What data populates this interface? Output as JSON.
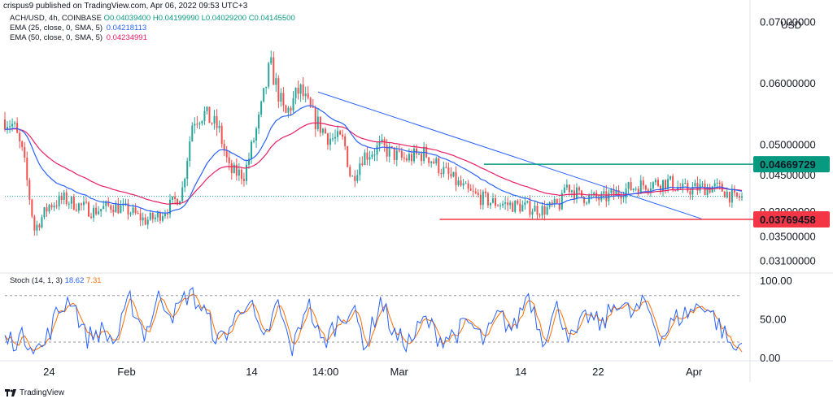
{
  "publisher": "crispus9 published on TradingView.com, Apr 06, 2022 09:53 UTC+3",
  "symbol_line": {
    "symbol": "ACH/USD, 4h, COINBASE",
    "o": "O0.04039400",
    "h": "H0.04199990",
    "l": "L0.04029200",
    "c": "C0.04145500"
  },
  "ema25": {
    "label": "EMA (25, close, 0, SMA, 5)",
    "value": "0.04218113",
    "color": "#2962ff"
  },
  "ema50": {
    "label": "EMA (50, close, 0, SMA, 5)",
    "value": "0.04234991",
    "color": "#e91e63"
  },
  "currency": "USD",
  "price_axis": {
    "ticks": [
      "0.07000000",
      "0.06000000",
      "0.05000000",
      "0.04500000",
      "0.03900000",
      "0.03500000",
      "0.03100000"
    ],
    "tick_values": [
      0.07,
      0.06,
      0.05,
      0.045,
      0.039,
      0.035,
      0.031
    ],
    "resistance_label": "0.04669729",
    "support_label": "0.03769458",
    "resistance_value": 0.04669729,
    "support_value": 0.03769458,
    "current_value": 0.041455
  },
  "stoch": {
    "label": "Stoch (14, 1, 3)",
    "k_value": "18.62",
    "d_value": "7.31",
    "ticks": [
      "100.00",
      "50.00",
      "0.00"
    ],
    "tick_values": [
      100,
      50,
      0
    ],
    "upper_band": 80,
    "lower_band": 20,
    "k_color": "#2962ff",
    "d_color": "#ff6d00"
  },
  "time_axis": [
    "24",
    "Feb",
    "14",
    "14:00",
    "Mar",
    "14",
    "22",
    "Apr"
  ],
  "footer": "TradingView",
  "colors": {
    "up": "#26a69a",
    "down": "#ef5350",
    "resistance": "#089981",
    "support": "#f23645",
    "trend": "#2962ff"
  },
  "chart_data": {
    "type": "candlestick",
    "title": "ACH/USD, 4h, COINBASE",
    "ylim": [
      0.0292,
      0.0722
    ],
    "price_path": [
      [
        0,
        0.054
      ],
      [
        0.012,
        0.053
      ],
      [
        0.025,
        0.048
      ],
      [
        0.04,
        0.036
      ],
      [
        0.05,
        0.038
      ],
      [
        0.06,
        0.04
      ],
      [
        0.08,
        0.041
      ],
      [
        0.1,
        0.04
      ],
      [
        0.12,
        0.039
      ],
      [
        0.145,
        0.04
      ],
      [
        0.17,
        0.039
      ],
      [
        0.19,
        0.0375
      ],
      [
        0.205,
        0.038
      ],
      [
        0.225,
        0.04
      ],
      [
        0.24,
        0.042
      ],
      [
        0.255,
        0.054
      ],
      [
        0.27,
        0.055
      ],
      [
        0.29,
        0.0525
      ],
      [
        0.305,
        0.0455
      ],
      [
        0.325,
        0.045
      ],
      [
        0.345,
        0.054
      ],
      [
        0.36,
        0.063
      ],
      [
        0.38,
        0.0545
      ],
      [
        0.4,
        0.059
      ],
      [
        0.42,
        0.054
      ],
      [
        0.44,
        0.051
      ],
      [
        0.46,
        0.0505
      ],
      [
        0.47,
        0.044
      ],
      [
        0.485,
        0.048
      ],
      [
        0.51,
        0.0495
      ],
      [
        0.54,
        0.0475
      ],
      [
        0.57,
        0.0485
      ],
      [
        0.6,
        0.045
      ],
      [
        0.63,
        0.042
      ],
      [
        0.66,
        0.0405
      ],
      [
        0.7,
        0.0398
      ],
      [
        0.73,
        0.0392
      ],
      [
        0.755,
        0.0402
      ],
      [
        0.76,
        0.0435
      ],
      [
        0.78,
        0.0415
      ],
      [
        0.81,
        0.041
      ],
      [
        0.84,
        0.0425
      ],
      [
        0.87,
        0.0435
      ],
      [
        0.9,
        0.0438
      ],
      [
        0.92,
        0.0425
      ],
      [
        0.94,
        0.0428
      ],
      [
        0.96,
        0.043
      ],
      [
        0.975,
        0.0425
      ],
      [
        0.99,
        0.041
      ],
      [
        1.0,
        0.041455
      ]
    ],
    "stoch_path": [
      [
        0,
        22
      ],
      [
        0.03,
        25
      ],
      [
        0.05,
        10
      ],
      [
        0.07,
        55
      ],
      [
        0.09,
        80
      ],
      [
        0.11,
        25
      ],
      [
        0.13,
        35
      ],
      [
        0.15,
        20
      ],
      [
        0.17,
        75
      ],
      [
        0.19,
        30
      ],
      [
        0.21,
        80
      ],
      [
        0.23,
        55
      ],
      [
        0.25,
        85
      ],
      [
        0.27,
        60
      ],
      [
        0.29,
        20
      ],
      [
        0.31,
        45
      ],
      [
        0.33,
        80
      ],
      [
        0.35,
        15
      ],
      [
        0.37,
        70
      ],
      [
        0.39,
        5
      ],
      [
        0.41,
        75
      ],
      [
        0.43,
        15
      ],
      [
        0.45,
        45
      ],
      [
        0.47,
        65
      ],
      [
        0.49,
        15
      ],
      [
        0.51,
        75
      ],
      [
        0.53,
        25
      ],
      [
        0.55,
        20
      ],
      [
        0.57,
        50
      ],
      [
        0.59,
        25
      ],
      [
        0.61,
        30
      ],
      [
        0.63,
        45
      ],
      [
        0.65,
        20
      ],
      [
        0.67,
        55
      ],
      [
        0.69,
        35
      ],
      [
        0.71,
        85
      ],
      [
        0.73,
        25
      ],
      [
        0.75,
        65
      ],
      [
        0.77,
        20
      ],
      [
        0.79,
        55
      ],
      [
        0.81,
        40
      ],
      [
        0.83,
        75
      ],
      [
        0.85,
        55
      ],
      [
        0.87,
        70
      ],
      [
        0.89,
        25
      ],
      [
        0.91,
        50
      ],
      [
        0.93,
        60
      ],
      [
        0.95,
        70
      ],
      [
        0.97,
        40
      ],
      [
        0.99,
        8
      ],
      [
        1.0,
        18.62
      ]
    ]
  }
}
